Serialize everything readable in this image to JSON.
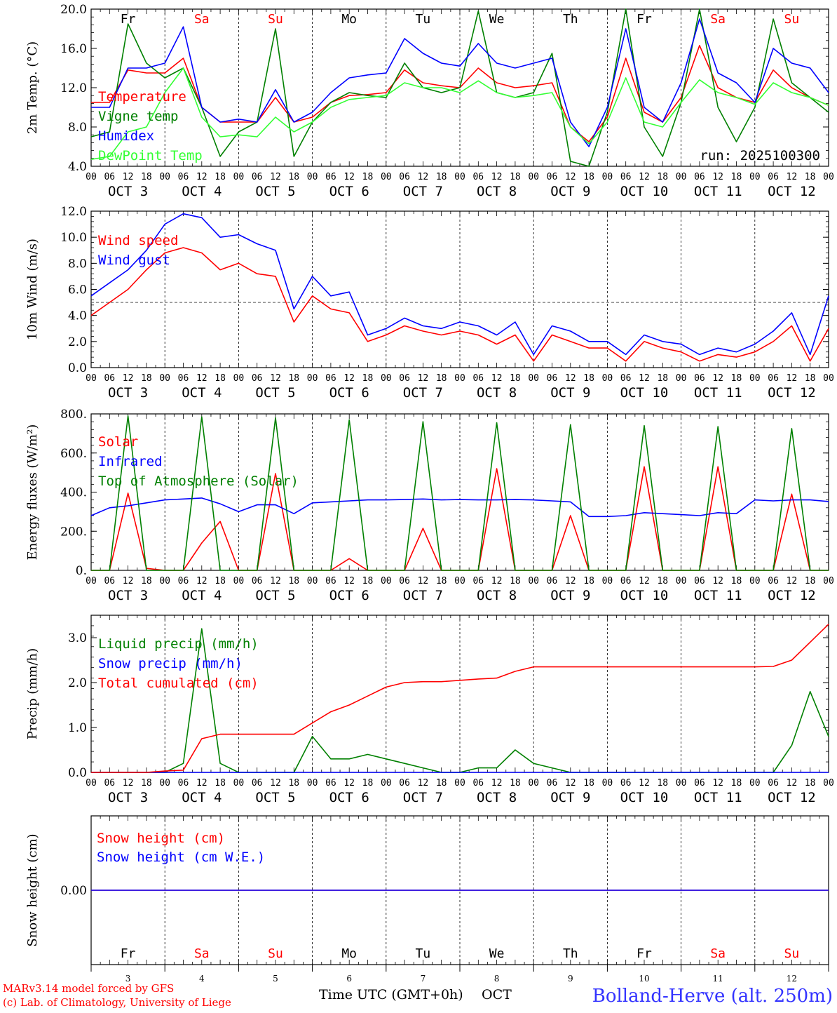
{
  "colors": {
    "red": "#ff0000",
    "green": "#008000",
    "blue": "#0000ff",
    "lightgreen": "#33ff33",
    "axis": "#000000",
    "grid": "#000000",
    "weekend": "#ff0000"
  },
  "days": {
    "names": [
      "Fr",
      "Sa",
      "Su",
      "Mo",
      "Tu",
      "We",
      "Th",
      "Fr",
      "Sa",
      "Su"
    ],
    "weekend": [
      false,
      true,
      true,
      false,
      false,
      false,
      false,
      false,
      true,
      true
    ],
    "month": "OCT",
    "numbers": [
      "3",
      "4",
      "5",
      "6",
      "7",
      "8",
      "9",
      "10",
      "11",
      "12"
    ],
    "hour_ticks": [
      "00",
      "06",
      "12",
      "18"
    ],
    "final_tick": "00"
  },
  "footer": {
    "model": "MARv3.14 model forced by GFS",
    "copyright": "(c) Lab. of Climatology, University of Liege",
    "time_label": "Time UTC (GMT+0h)",
    "month_label": "OCT",
    "station": "Bolland-Herve (alt. 250m)"
  },
  "chart_data": [
    {
      "type": "line",
      "title": "",
      "ylabel": "2m Temp. (°C)",
      "ylim": [
        4.0,
        20.0
      ],
      "yticks": [
        "4.0",
        "8.0",
        "12.0",
        "16.0",
        "20.0"
      ],
      "run_label": "run: 2025100300",
      "x_hours": [
        0,
        6,
        12,
        18,
        24,
        30,
        36,
        42,
        48,
        54,
        60,
        66,
        72,
        78,
        84,
        90,
        96,
        102,
        108,
        114,
        120,
        126,
        132,
        138,
        144,
        150,
        156,
        162,
        168,
        174,
        180,
        186,
        192,
        198,
        204,
        210,
        216,
        222,
        228,
        234,
        240
      ],
      "series": [
        {
          "name": "Temperature",
          "color": "red",
          "values": [
            10.5,
            10.5,
            13.8,
            13.5,
            13.5,
            15.0,
            10.0,
            8.5,
            8.5,
            8.5,
            11.0,
            8.5,
            9.0,
            10.5,
            11.2,
            11.3,
            11.5,
            13.8,
            12.5,
            12.2,
            12.0,
            14.0,
            12.5,
            12.0,
            12.2,
            12.5,
            8.0,
            6.5,
            9.0,
            15.0,
            9.5,
            8.5,
            11.0,
            16.3,
            12.0,
            11.0,
            10.5,
            13.8,
            12.0,
            11.0,
            10.2
          ]
        },
        {
          "name": "Vigne temp",
          "color": "green",
          "values": [
            7.0,
            7.5,
            18.5,
            14.5,
            13.0,
            14.0,
            10.0,
            5.0,
            7.5,
            8.5,
            18.0,
            5.0,
            8.5,
            10.5,
            11.5,
            11.2,
            11.0,
            14.5,
            12.0,
            11.5,
            12.0,
            19.8,
            11.5,
            11.0,
            11.5,
            15.5,
            4.5,
            4.0,
            9.5,
            20.0,
            8.0,
            5.0,
            10.5,
            20.0,
            10.0,
            6.5,
            10.0,
            19.0,
            12.5,
            11.0,
            9.5
          ]
        },
        {
          "name": "Humidex",
          "color": "blue",
          "values": [
            10.0,
            10.0,
            14.0,
            14.0,
            14.5,
            18.2,
            10.0,
            8.5,
            8.8,
            8.5,
            11.8,
            8.5,
            9.5,
            11.5,
            13.0,
            13.3,
            13.5,
            17.0,
            15.5,
            14.5,
            14.2,
            16.5,
            14.5,
            14.0,
            14.5,
            15.0,
            8.5,
            6.0,
            10.0,
            18.0,
            10.0,
            8.5,
            12.5,
            19.0,
            13.5,
            12.5,
            10.5,
            16.0,
            14.5,
            14.0,
            11.5
          ]
        },
        {
          "name": "DewPoint Temp",
          "color": "lightgreen",
          "values": [
            4.7,
            5.0,
            7.5,
            8.0,
            11.5,
            14.0,
            9.0,
            7.0,
            7.2,
            7.0,
            9.0,
            7.5,
            8.5,
            10.0,
            10.8,
            11.0,
            11.2,
            12.5,
            12.0,
            12.0,
            11.5,
            12.7,
            11.5,
            11.0,
            11.2,
            11.5,
            8.0,
            6.3,
            8.5,
            13.0,
            8.5,
            8.0,
            10.5,
            12.8,
            11.5,
            11.0,
            10.3,
            12.5,
            11.5,
            11.0,
            10.2
          ]
        }
      ]
    },
    {
      "type": "line",
      "ylabel": "10m Wind (m/s)",
      "ylim": [
        0.0,
        12.0
      ],
      "yticks": [
        "0.0",
        "2.0",
        "4.0",
        "6.0",
        "8.0",
        "10.0",
        "12.0"
      ],
      "reference_line": 5.0,
      "x_hours": [
        0,
        6,
        12,
        18,
        24,
        30,
        36,
        42,
        48,
        54,
        60,
        66,
        72,
        78,
        84,
        90,
        96,
        102,
        108,
        114,
        120,
        126,
        132,
        138,
        144,
        150,
        156,
        162,
        168,
        174,
        180,
        186,
        192,
        198,
        204,
        210,
        216,
        222,
        228,
        234,
        240
      ],
      "series": [
        {
          "name": "Wind speed",
          "color": "red",
          "values": [
            4.0,
            5.0,
            6.0,
            7.5,
            8.8,
            9.2,
            8.8,
            7.5,
            8.0,
            7.2,
            7.0,
            3.5,
            5.5,
            4.5,
            4.2,
            2.0,
            2.5,
            3.2,
            2.8,
            2.5,
            2.8,
            2.5,
            1.8,
            2.5,
            0.5,
            2.5,
            2.0,
            1.5,
            1.5,
            0.5,
            2.0,
            1.5,
            1.2,
            0.5,
            1.0,
            0.8,
            1.2,
            2.0,
            3.2,
            0.5,
            3.0
          ]
        },
        {
          "name": "Wind gust",
          "color": "blue",
          "values": [
            5.5,
            6.5,
            7.5,
            9.0,
            11.0,
            11.8,
            11.5,
            10.0,
            10.2,
            9.5,
            9.0,
            4.5,
            7.0,
            5.5,
            5.8,
            2.5,
            3.0,
            3.8,
            3.2,
            3.0,
            3.5,
            3.2,
            2.5,
            3.5,
            1.0,
            3.2,
            2.8,
            2.0,
            2.0,
            1.0,
            2.5,
            2.0,
            1.8,
            1.0,
            1.5,
            1.2,
            1.8,
            2.8,
            4.2,
            1.0,
            5.5
          ]
        }
      ]
    },
    {
      "type": "line",
      "ylabel": "Energy fluxes (W/m²)",
      "ylim": [
        0,
        800
      ],
      "yticks": [
        "0.",
        "200.",
        "400.",
        "600.",
        "800."
      ],
      "x_hours": [
        0,
        6,
        12,
        18,
        24,
        30,
        36,
        42,
        48,
        54,
        60,
        66,
        72,
        78,
        84,
        90,
        96,
        102,
        108,
        114,
        120,
        126,
        132,
        138,
        144,
        150,
        156,
        162,
        168,
        174,
        180,
        186,
        192,
        198,
        204,
        210,
        216,
        222,
        228,
        234,
        240
      ],
      "series": [
        {
          "name": "Solar",
          "color": "red",
          "values": [
            0,
            0,
            395,
            10,
            0,
            0,
            140,
            250,
            0,
            0,
            495,
            0,
            0,
            0,
            60,
            0,
            0,
            0,
            215,
            0,
            0,
            0,
            520,
            0,
            0,
            0,
            280,
            0,
            0,
            0,
            530,
            0,
            0,
            0,
            530,
            0,
            0,
            0,
            390,
            0,
            0
          ]
        },
        {
          "name": "Infrared",
          "color": "blue",
          "values": [
            280,
            320,
            330,
            345,
            360,
            365,
            370,
            340,
            300,
            335,
            335,
            290,
            345,
            350,
            355,
            360,
            360,
            362,
            365,
            360,
            362,
            360,
            360,
            362,
            360,
            355,
            350,
            275,
            275,
            280,
            295,
            290,
            285,
            280,
            295,
            290,
            360,
            355,
            360,
            360,
            352
          ]
        },
        {
          "name": "Top of Atmosphere (Solar)",
          "color": "green",
          "values": [
            0,
            0,
            790,
            0,
            0,
            0,
            785,
            0,
            0,
            0,
            780,
            0,
            0,
            0,
            770,
            0,
            0,
            0,
            760,
            0,
            0,
            0,
            755,
            0,
            0,
            0,
            745,
            0,
            0,
            0,
            740,
            0,
            0,
            0,
            735,
            0,
            0,
            0,
            725,
            0,
            0
          ]
        }
      ]
    },
    {
      "type": "line",
      "ylabel": "Precip (mm/h)",
      "ylim": [
        0.0,
        3.5
      ],
      "yticks": [
        "0.0",
        "1.0",
        "2.0",
        "3.0"
      ],
      "x_hours": [
        0,
        6,
        12,
        18,
        24,
        30,
        36,
        42,
        48,
        54,
        60,
        66,
        72,
        78,
        84,
        90,
        96,
        102,
        108,
        114,
        120,
        126,
        132,
        138,
        144,
        150,
        156,
        162,
        168,
        174,
        180,
        186,
        192,
        198,
        204,
        210,
        216,
        222,
        228,
        234,
        240
      ],
      "series": [
        {
          "name": "Liquid precip (mm/h)",
          "color": "green",
          "values": [
            0,
            0,
            0,
            0,
            0,
            0.2,
            3.2,
            0.2,
            0,
            0,
            0,
            0,
            0.8,
            0.3,
            0.3,
            0.4,
            0.3,
            0.2,
            0.1,
            0,
            0,
            0.1,
            0.1,
            0.5,
            0.2,
            0.1,
            0,
            0,
            0,
            0,
            0,
            0,
            0,
            0,
            0,
            0,
            0,
            0,
            0.6,
            1.8,
            0.8
          ]
        },
        {
          "name": "Snow precip (mm/h)",
          "color": "blue",
          "values": [
            0,
            0,
            0,
            0,
            0,
            0,
            0,
            0,
            0,
            0,
            0,
            0,
            0,
            0,
            0,
            0,
            0,
            0,
            0,
            0,
            0,
            0,
            0,
            0,
            0,
            0,
            0,
            0,
            0,
            0,
            0,
            0,
            0,
            0,
            0,
            0,
            0,
            0,
            0,
            0,
            0
          ]
        },
        {
          "name": "Total cumulated (cm)",
          "color": "red",
          "values": [
            0,
            0,
            0,
            0,
            0.03,
            0.05,
            0.75,
            0.85,
            0.85,
            0.85,
            0.85,
            0.85,
            1.1,
            1.35,
            1.5,
            1.7,
            1.9,
            2.0,
            2.02,
            2.02,
            2.05,
            2.08,
            2.1,
            2.25,
            2.35,
            2.35,
            2.35,
            2.35,
            2.35,
            2.35,
            2.35,
            2.35,
            2.35,
            2.35,
            2.35,
            2.35,
            2.35,
            2.36,
            2.5,
            2.9,
            3.3
          ]
        }
      ]
    },
    {
      "type": "line",
      "ylabel": "Snow height (cm)",
      "ylim": [
        -1,
        1
      ],
      "yticks": [
        "0.00"
      ],
      "x_hours": [
        0,
        240
      ],
      "series": [
        {
          "name": "Snow height (cm)",
          "color": "red",
          "values": [
            0,
            0
          ]
        },
        {
          "name": "Snow height (cm W.E.)",
          "color": "blue",
          "values": [
            0,
            0
          ]
        }
      ]
    }
  ]
}
